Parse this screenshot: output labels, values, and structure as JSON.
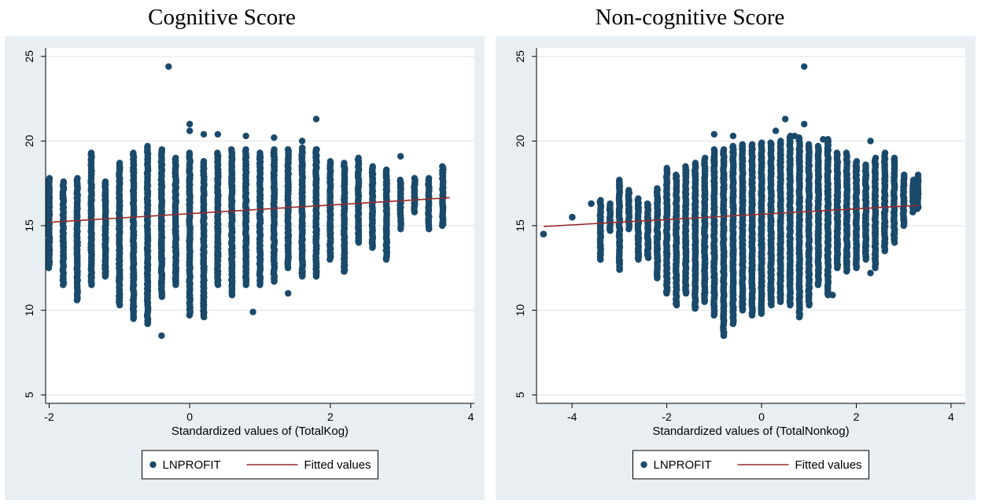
{
  "chart_data": [
    {
      "type": "scatter",
      "title": "Cognitive Score",
      "xlabel": "Standardized values of (TotalKog)",
      "ylabel": "",
      "xlim": [
        -2.05,
        4.05
      ],
      "ylim": [
        4.5,
        25.5
      ],
      "xticks": [
        -2,
        0,
        2,
        4
      ],
      "yticks": [
        5,
        10,
        15,
        20,
        25
      ],
      "grid": true,
      "legend_position": "bottom",
      "colors": {
        "points": "#1a4a6b",
        "fit": "#962a2a",
        "plotbg": "#ffffff",
        "outerbg": "#e8eef2",
        "grid": "#e6ecef"
      },
      "series": [
        {
          "name": "LNPROFIT",
          "kind": "scatter",
          "columns": [
            {
              "x": -2.0,
              "ymin": 12.5,
              "ymax": 17.8
            },
            {
              "x": -1.8,
              "ymin": 11.5,
              "ymax": 17.6
            },
            {
              "x": -1.6,
              "ymin": 10.6,
              "ymax": 17.8
            },
            {
              "x": -1.4,
              "ymin": 11.5,
              "ymax": 19.3
            },
            {
              "x": -1.2,
              "ymin": 12.0,
              "ymax": 17.6
            },
            {
              "x": -1.0,
              "ymin": 10.3,
              "ymax": 18.7
            },
            {
              "x": -0.8,
              "ymin": 9.6,
              "ymax": 19.3
            },
            {
              "x": -0.6,
              "ymin": 9.2,
              "ymax": 19.7
            },
            {
              "x": -0.4,
              "ymin": 10.8,
              "ymax": 19.5
            },
            {
              "x": -0.2,
              "ymin": 11.5,
              "ymax": 19.0
            },
            {
              "x": 0.0,
              "ymin": 9.7,
              "ymax": 19.3
            },
            {
              "x": 0.2,
              "ymin": 9.6,
              "ymax": 18.8
            },
            {
              "x": 0.4,
              "ymin": 11.5,
              "ymax": 19.3
            },
            {
              "x": 0.6,
              "ymin": 10.9,
              "ymax": 19.5
            },
            {
              "x": 0.8,
              "ymin": 11.5,
              "ymax": 19.5
            },
            {
              "x": 1.0,
              "ymin": 11.5,
              "ymax": 19.3
            },
            {
              "x": 1.2,
              "ymin": 11.7,
              "ymax": 19.5
            },
            {
              "x": 1.4,
              "ymin": 12.5,
              "ymax": 19.5
            },
            {
              "x": 1.6,
              "ymin": 12.0,
              "ymax": 19.6
            },
            {
              "x": 1.8,
              "ymin": 12.0,
              "ymax": 19.5
            },
            {
              "x": 2.0,
              "ymin": 13.0,
              "ymax": 18.8
            },
            {
              "x": 2.2,
              "ymin": 12.3,
              "ymax": 18.7
            },
            {
              "x": 2.4,
              "ymin": 14.0,
              "ymax": 19.0
            },
            {
              "x": 2.6,
              "ymin": 13.7,
              "ymax": 18.5
            },
            {
              "x": 2.8,
              "ymin": 13.0,
              "ymax": 18.3
            },
            {
              "x": 3.0,
              "ymin": 14.8,
              "ymax": 17.7
            },
            {
              "x": 3.2,
              "ymin": 15.8,
              "ymax": 17.8
            },
            {
              "x": 3.4,
              "ymin": 14.8,
              "ymax": 17.8
            },
            {
              "x": 3.6,
              "ymin": 15.0,
              "ymax": 18.5
            }
          ],
          "extra_points": [
            [
              -0.3,
              24.4
            ],
            [
              0.0,
              21.0
            ],
            [
              0.0,
              20.6
            ],
            [
              0.2,
              20.4
            ],
            [
              0.4,
              20.4
            ],
            [
              0.8,
              20.3
            ],
            [
              1.2,
              20.2
            ],
            [
              1.6,
              20.0
            ],
            [
              1.8,
              21.3
            ],
            [
              1.8,
              19.5
            ],
            [
              3.0,
              19.1
            ],
            [
              0.9,
              9.9
            ],
            [
              0.2,
              10.5
            ],
            [
              0.0,
              10.5
            ],
            [
              -0.4,
              8.5
            ],
            [
              -0.6,
              9.2
            ],
            [
              -0.8,
              9.5
            ],
            [
              1.4,
              11.0
            ],
            [
              2.2,
              12.3
            ]
          ]
        },
        {
          "name": "Fitted values",
          "kind": "line",
          "x": [
            -2.0,
            3.7
          ],
          "y": [
            15.2,
            16.65
          ]
        }
      ]
    },
    {
      "type": "scatter",
      "title": "Non-cognitive Score",
      "xlabel": "Standardized values of (TotalNonkog)",
      "ylabel": "",
      "xlim": [
        -4.75,
        4.3
      ],
      "ylim": [
        4.5,
        25.5
      ],
      "xticks": [
        -4,
        -2,
        0,
        2,
        4
      ],
      "yticks": [
        5,
        10,
        15,
        20,
        25
      ],
      "grid": true,
      "legend_position": "bottom",
      "colors": {
        "points": "#1a4a6b",
        "fit": "#962a2a",
        "plotbg": "#ffffff",
        "outerbg": "#e8eef2",
        "grid": "#e6ecef"
      },
      "series": [
        {
          "name": "LNPROFIT",
          "kind": "scatter",
          "columns": [
            {
              "x": -4.6,
              "ymin": 14.5,
              "ymax": 14.5
            },
            {
              "x": -4.0,
              "ymin": 15.5,
              "ymax": 15.5
            },
            {
              "x": -3.6,
              "ymin": 16.3,
              "ymax": 16.3
            },
            {
              "x": -3.4,
              "ymin": 13.0,
              "ymax": 16.5
            },
            {
              "x": -3.2,
              "ymin": 14.7,
              "ymax": 16.3
            },
            {
              "x": -3.0,
              "ymin": 12.4,
              "ymax": 17.7
            },
            {
              "x": -2.8,
              "ymin": 14.8,
              "ymax": 17.1
            },
            {
              "x": -2.6,
              "ymin": 13.0,
              "ymax": 16.6
            },
            {
              "x": -2.4,
              "ymin": 13.1,
              "ymax": 16.3
            },
            {
              "x": -2.2,
              "ymin": 11.9,
              "ymax": 17.2
            },
            {
              "x": -2.0,
              "ymin": 11.0,
              "ymax": 18.4
            },
            {
              "x": -1.8,
              "ymin": 10.3,
              "ymax": 18.0
            },
            {
              "x": -1.6,
              "ymin": 11.0,
              "ymax": 18.5
            },
            {
              "x": -1.4,
              "ymin": 10.1,
              "ymax": 18.7
            },
            {
              "x": -1.2,
              "ymin": 10.5,
              "ymax": 19.0
            },
            {
              "x": -1.0,
              "ymin": 9.7,
              "ymax": 19.5
            },
            {
              "x": -0.8,
              "ymin": 8.5,
              "ymax": 19.5
            },
            {
              "x": -0.6,
              "ymin": 9.2,
              "ymax": 19.7
            },
            {
              "x": -0.4,
              "ymin": 10.0,
              "ymax": 19.8
            },
            {
              "x": -0.2,
              "ymin": 9.8,
              "ymax": 19.8
            },
            {
              "x": 0.0,
              "ymin": 9.8,
              "ymax": 19.9
            },
            {
              "x": 0.2,
              "ymin": 10.3,
              "ymax": 19.9
            },
            {
              "x": 0.4,
              "ymin": 10.5,
              "ymax": 20.0
            },
            {
              "x": 0.6,
              "ymin": 10.3,
              "ymax": 20.3
            },
            {
              "x": 0.8,
              "ymin": 9.6,
              "ymax": 20.2
            },
            {
              "x": 1.0,
              "ymin": 10.3,
              "ymax": 19.8
            },
            {
              "x": 1.2,
              "ymin": 11.5,
              "ymax": 19.7
            },
            {
              "x": 1.4,
              "ymin": 10.9,
              "ymax": 20.1
            },
            {
              "x": 1.6,
              "ymin": 12.5,
              "ymax": 19.3
            },
            {
              "x": 1.8,
              "ymin": 12.3,
              "ymax": 19.3
            },
            {
              "x": 2.0,
              "ymin": 12.5,
              "ymax": 18.8
            },
            {
              "x": 2.2,
              "ymin": 13.0,
              "ymax": 18.6
            },
            {
              "x": 2.4,
              "ymin": 12.5,
              "ymax": 19.0
            },
            {
              "x": 2.6,
              "ymin": 13.5,
              "ymax": 19.3
            },
            {
              "x": 2.8,
              "ymin": 14.0,
              "ymax": 19.0
            },
            {
              "x": 3.0,
              "ymin": 15.0,
              "ymax": 18.0
            },
            {
              "x": 3.2,
              "ymin": 15.8,
              "ymax": 17.7
            },
            {
              "x": 3.3,
              "ymin": 16.0,
              "ymax": 18.0
            }
          ],
          "extra_points": [
            [
              0.9,
              24.4
            ],
            [
              0.5,
              21.3
            ],
            [
              0.9,
              21.0
            ],
            [
              0.3,
              20.6
            ],
            [
              -1.0,
              20.4
            ],
            [
              -0.6,
              20.3
            ],
            [
              0.7,
              20.3
            ],
            [
              1.3,
              20.1
            ],
            [
              2.3,
              20.0
            ],
            [
              -0.8,
              8.5
            ],
            [
              -0.6,
              9.2
            ],
            [
              0.8,
              9.6
            ],
            [
              -0.2,
              9.7
            ],
            [
              2.3,
              12.2
            ],
            [
              1.5,
              10.9
            ],
            [
              -3.4,
              13.0
            ],
            [
              -3.0,
              12.4
            ]
          ]
        },
        {
          "name": "Fitted values",
          "kind": "line",
          "x": [
            -4.6,
            3.3
          ],
          "y": [
            14.95,
            16.2
          ]
        }
      ]
    }
  ]
}
